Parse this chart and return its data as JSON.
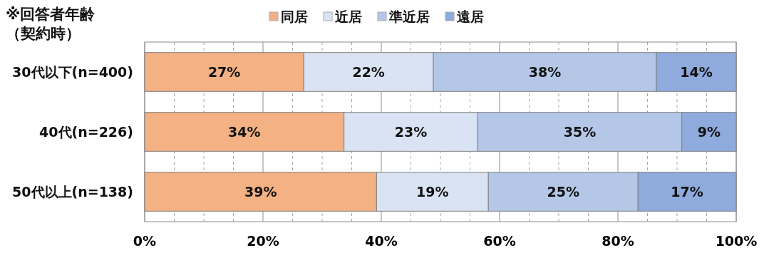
{
  "chart_data": {
    "type": "bar",
    "orientation": "horizontal",
    "stacked": true,
    "title": "※回答者年齢",
    "subtitle": "（契約時）",
    "categories": [
      "30代以下(n=400)",
      "40代(n=226)",
      "50代以上(n=138)"
    ],
    "series": [
      {
        "name": "同居",
        "color": "#f4b183",
        "values": [
          26.9,
          33.7,
          39.2
        ],
        "value_labels": [
          "27%",
          "34%",
          "39%"
        ]
      },
      {
        "name": "近居",
        "color": "#dae3f3",
        "values": [
          21.9,
          22.6,
          18.9
        ],
        "value_labels": [
          "22%",
          "23%",
          "19%"
        ]
      },
      {
        "name": "準近居",
        "color": "#b4c7e7",
        "values": [
          37.7,
          34.5,
          25.3
        ],
        "value_labels": [
          "38%",
          "35%",
          "25%"
        ]
      },
      {
        "name": "遠居",
        "color": "#8faadc",
        "values": [
          13.5,
          9.2,
          16.6
        ],
        "value_labels": [
          "14%",
          "9%",
          "17%"
        ]
      }
    ],
    "xlim": [
      0,
      100
    ],
    "xticks": [
      {
        "value": 0,
        "label": "0%"
      },
      {
        "value": 5,
        "label": null
      },
      {
        "value": 10,
        "label": null
      },
      {
        "value": 15,
        "label": null
      },
      {
        "value": 20,
        "label": "20%"
      },
      {
        "value": 25,
        "label": null
      },
      {
        "value": 30,
        "label": null
      },
      {
        "value": 35,
        "label": null
      },
      {
        "value": 40,
        "label": "40%"
      },
      {
        "value": 45,
        "label": null
      },
      {
        "value": 50,
        "label": null
      },
      {
        "value": 55,
        "label": null
      },
      {
        "value": 60,
        "label": "60%"
      },
      {
        "value": 65,
        "label": null
      },
      {
        "value": 70,
        "label": null
      },
      {
        "value": 75,
        "label": null
      },
      {
        "value": 80,
        "label": "80%"
      },
      {
        "value": 85,
        "label": null
      },
      {
        "value": 90,
        "label": null
      },
      {
        "value": 95,
        "label": null
      },
      {
        "value": 100,
        "label": "100%"
      }
    ],
    "grid": "x",
    "legend": "top"
  }
}
